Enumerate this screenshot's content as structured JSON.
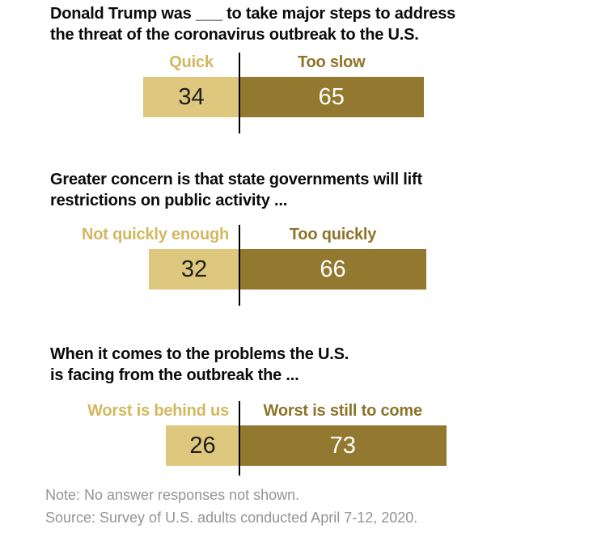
{
  "page": {
    "background": "#ffffff"
  },
  "styles": {
    "light_bar_color": "#DDC87D",
    "dark_bar_color": "#93792F",
    "light_label_color": "#D3B75F",
    "dark_label_color": "#8E7329",
    "title_color": "#0B0B0B",
    "note_color": "#949494",
    "divider_color": "#000000",
    "value_on_light_color": "#1F1F1F",
    "value_on_dark_color": "#FFFFFF"
  },
  "chart_data": [
    {
      "type": "bar",
      "layout": "diverging-horizontal",
      "value_labels": "inside",
      "legend": "none",
      "axes": "none",
      "title": "Donald Trump was ___ to take major steps to address the threat of the coronavirus outbreak to the U.S.",
      "title_lines": [
        "Donald Trump was ___ to take major steps to address",
        "the threat of the coronavirus outbreak to the U.S."
      ],
      "categories": [
        "Quick",
        "Too slow"
      ],
      "values": [
        34,
        65
      ]
    },
    {
      "type": "bar",
      "layout": "diverging-horizontal",
      "value_labels": "inside",
      "legend": "none",
      "axes": "none",
      "title": "Greater concern is that state governments will lift restrictions on public activity ...",
      "title_lines": [
        "Greater concern is that state governments will lift",
        "restrictions on public activity ..."
      ],
      "categories": [
        "Not quickly enough",
        "Too quickly"
      ],
      "values": [
        32,
        66
      ]
    },
    {
      "type": "bar",
      "layout": "diverging-horizontal",
      "value_labels": "inside",
      "legend": "none",
      "axes": "none",
      "title": "When it comes to the problems the U.S. is facing from the outbreak the ...",
      "title_lines": [
        "When it comes to the problems the U.S.",
        "is facing from the outbreak the ..."
      ],
      "categories": [
        "Worst is behind us",
        "Worst is still to come"
      ],
      "values": [
        26,
        73
      ]
    }
  ],
  "footer": {
    "note": "Note: No answer responses not shown.",
    "source": "Source: Survey of U.S. adults conducted April 7-12, 2020."
  }
}
